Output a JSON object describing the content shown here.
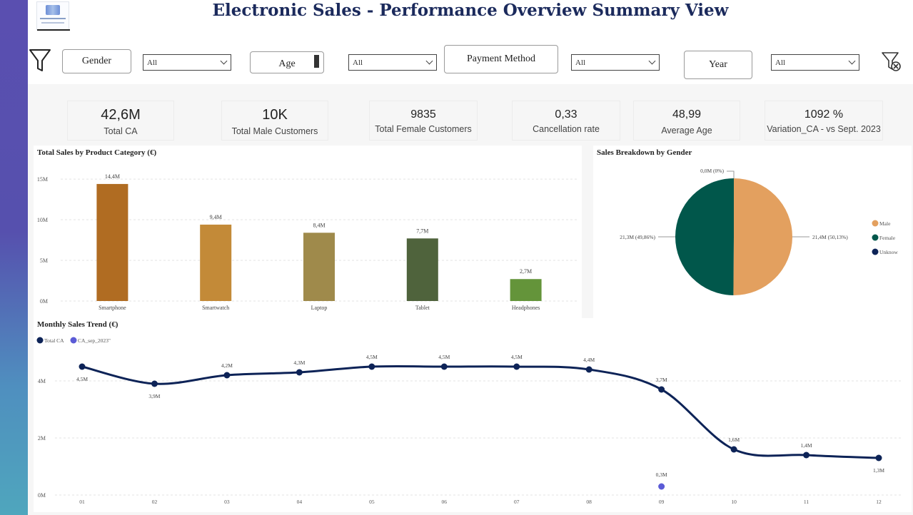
{
  "header": {
    "title": "Electronic Sales - Performance Overview Summary View"
  },
  "filters": {
    "gender": {
      "label": "Gender",
      "value": "All"
    },
    "age": {
      "label": "Age",
      "value": "All"
    },
    "payment": {
      "label": "Payment Method",
      "value": "All"
    },
    "year": {
      "label": "Year",
      "value": "All"
    }
  },
  "kpis": [
    {
      "value": "42,6M",
      "label": "Total CA"
    },
    {
      "value": "10K",
      "label": "Total Male Customers"
    },
    {
      "value": "9835",
      "label": "Total Female Customers"
    },
    {
      "value": "0,33",
      "label": "Cancellation rate"
    },
    {
      "value": "48,99",
      "label": "Average Age"
    },
    {
      "value": "1092 %",
      "label": "Variation_CA - vs Sept. 2023"
    }
  ],
  "colors": {
    "title": "#1b2a5c",
    "line": "#0d2357",
    "cmp_point": "#5b5bd6",
    "male": "#e3a05f",
    "female": "#01574b",
    "unknown": "#0d2357"
  },
  "chart_data": [
    {
      "type": "bar",
      "title": "Total Sales by Product Category (€)",
      "categories": [
        "Smartphone",
        "Smartwatch",
        "Laptop",
        "Tablet",
        "Headphones"
      ],
      "values": [
        14.4,
        9.4,
        8.4,
        7.7,
        2.7
      ],
      "value_labels": [
        "14,4M",
        "9,4M",
        "8,4M",
        "7,7M",
        "2,7M"
      ],
      "bar_colors": [
        "#b06c22",
        "#c38a38",
        "#9f8a4b",
        "#4f633c",
        "#64943a"
      ],
      "ytick_values": [
        0,
        5,
        10,
        15
      ],
      "yticks": [
        "0M",
        "5M",
        "10M",
        "15M"
      ],
      "ylim": [
        0,
        16.5
      ],
      "grid": true
    },
    {
      "type": "pie",
      "title": "Sales Breakdown by Gender",
      "labels": [
        "Male",
        "Female",
        "Unknow"
      ],
      "values": [
        21.4,
        21.3,
        0.0
      ],
      "percents": [
        50.13,
        49.86,
        0
      ],
      "slice_labels": [
        "21,4M (50,13%)",
        "21,3M (49,86%)",
        "0,0M (0%)"
      ],
      "legend": "right"
    },
    {
      "type": "line",
      "title": "Monthly Sales Trend (€)",
      "x": [
        "01",
        "02",
        "03",
        "04",
        "05",
        "06",
        "07",
        "08",
        "09",
        "10",
        "11",
        "12"
      ],
      "series": [
        {
          "name": "Total CA",
          "values": [
            4.5,
            3.9,
            4.2,
            4.3,
            4.5,
            4.5,
            4.5,
            4.4,
            3.7,
            1.6,
            1.4,
            1.3
          ],
          "labels": [
            "4,5M",
            "3,9M",
            "4,2M",
            "4,3M",
            "4,5M",
            "4,5M",
            "4,5M",
            "4,4M",
            "3,7M",
            "1,6M",
            "1,4M",
            "1,3M"
          ]
        },
        {
          "name": "CA_sep_2023\"",
          "points": [
            {
              "x": "09",
              "y": 0.3,
              "label": "0,3M"
            }
          ]
        }
      ],
      "legend_labels": [
        "Total CA",
        "CA_sep_2023\""
      ],
      "ytick_values": [
        0,
        2,
        4
      ],
      "yticks": [
        "0M",
        "2M",
        "4M"
      ],
      "ylim": [
        0,
        5.2
      ],
      "grid": true,
      "legend": "top-left"
    }
  ]
}
